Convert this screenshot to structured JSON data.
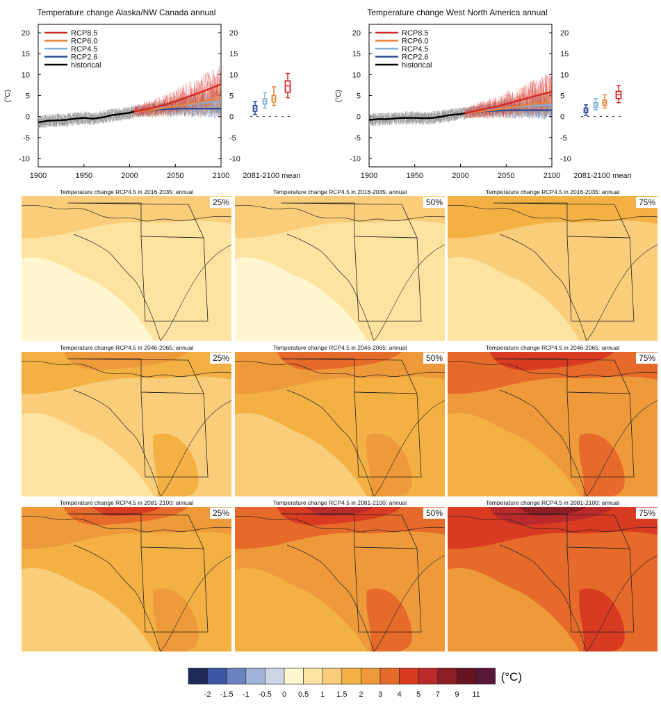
{
  "colors": {
    "rcp85": "#d62728",
    "rcp60": "#e8833a",
    "rcp45": "#7fb0dd",
    "rcp26": "#2c4a9a",
    "historical": "#000000",
    "hist_spread": "#8c8c8c",
    "map_levels": [
      "#1f2a5a",
      "#3b56a3",
      "#6b84bf",
      "#9fb2d8",
      "#cdd6e6",
      "#fff6cf",
      "#fde3a0",
      "#f9cd7a",
      "#f3b144",
      "#ef9a3a",
      "#e66a2a",
      "#d93a22",
      "#bb2a2b",
      "#8c1f24",
      "#661520",
      "#5a1738"
    ]
  },
  "chart_data": [
    {
      "type": "line",
      "title": "Temperature change Alaska/NW Canada annual",
      "ylabel": "(°C)",
      "xlim": [
        1900,
        2100
      ],
      "ylim": [
        -12,
        22
      ],
      "x_ticks": [
        "1900",
        "1950",
        "2000",
        "2050",
        "2100"
      ],
      "y_ticks": [
        "-10",
        "-5",
        "0",
        "5",
        "10",
        "15",
        "20"
      ],
      "legend": "top-left",
      "legend_entries": [
        "RCP8.5",
        "RCP6.0",
        "RCP4.5",
        "RCP2.6",
        "historical"
      ],
      "series": [
        {
          "name": "historical",
          "x": [
            1900,
            1910,
            1920,
            1930,
            1940,
            1950,
            1960,
            1970,
            1980,
            1990,
            2000,
            2005
          ],
          "y": [
            -1.4,
            -1.0,
            -0.9,
            -0.8,
            -0.5,
            -0.3,
            -0.5,
            -0.2,
            0.3,
            0.6,
            0.9,
            1.2
          ]
        },
        {
          "name": "RCP2.6",
          "x": [
            2005,
            2020,
            2040,
            2060,
            2080,
            2100
          ],
          "y": [
            1.2,
            1.5,
            1.8,
            1.9,
            1.9,
            1.9
          ]
        },
        {
          "name": "RCP4.5",
          "x": [
            2005,
            2020,
            2040,
            2060,
            2080,
            2100
          ],
          "y": [
            1.2,
            1.6,
            2.2,
            2.8,
            3.3,
            3.6
          ]
        },
        {
          "name": "RCP6.0",
          "x": [
            2005,
            2020,
            2040,
            2060,
            2080,
            2100
          ],
          "y": [
            1.2,
            1.5,
            2.1,
            2.9,
            3.6,
            4.3
          ]
        },
        {
          "name": "RCP8.5",
          "x": [
            2005,
            2020,
            2040,
            2060,
            2080,
            2100
          ],
          "y": [
            1.2,
            1.8,
            2.9,
            4.4,
            6.0,
            7.7
          ]
        }
      ],
      "box_label": "2081-2100 mean",
      "boxes": [
        {
          "scenario": "RCP2.6",
          "min": 0.5,
          "q1": 1.3,
          "median": 1.9,
          "q3": 2.6,
          "max": 3.6
        },
        {
          "scenario": "RCP4.5",
          "min": 2.0,
          "q1": 3.0,
          "median": 3.6,
          "q3": 4.2,
          "max": 5.7
        },
        {
          "scenario": "RCP6.0",
          "min": 2.6,
          "q1": 3.5,
          "median": 4.2,
          "q3": 5.0,
          "max": 7.1
        },
        {
          "scenario": "RCP8.5",
          "min": 4.5,
          "q1": 5.8,
          "median": 7.3,
          "q3": 8.5,
          "max": 10.3
        }
      ]
    },
    {
      "type": "line",
      "title": "Temperature change West North America annual",
      "ylabel": "(°C)",
      "xlim": [
        1900,
        2100
      ],
      "ylim": [
        -12,
        22
      ],
      "x_ticks": [
        "1900",
        "1950",
        "2000",
        "2050",
        "2100"
      ],
      "y_ticks": [
        "-10",
        "-5",
        "0",
        "5",
        "10",
        "15",
        "20"
      ],
      "legend": "top-left",
      "legend_entries": [
        "RCP8.5",
        "RCP6.0",
        "RCP4.5",
        "RCP2.6",
        "historical"
      ],
      "series": [
        {
          "name": "historical",
          "x": [
            1900,
            1910,
            1920,
            1930,
            1940,
            1950,
            1960,
            1970,
            1980,
            1990,
            2000,
            2005
          ],
          "y": [
            -0.8,
            -0.6,
            -0.6,
            -0.4,
            -0.3,
            -0.3,
            -0.4,
            -0.3,
            0.0,
            0.4,
            0.6,
            0.8
          ]
        },
        {
          "name": "RCP2.6",
          "x": [
            2005,
            2020,
            2040,
            2060,
            2080,
            2100
          ],
          "y": [
            0.8,
            1.2,
            1.4,
            1.5,
            1.5,
            1.5
          ]
        },
        {
          "name": "RCP4.5",
          "x": [
            2005,
            2020,
            2040,
            2060,
            2080,
            2100
          ],
          "y": [
            0.8,
            1.3,
            1.8,
            2.3,
            2.6,
            2.8
          ]
        },
        {
          "name": "RCP6.0",
          "x": [
            2005,
            2020,
            2040,
            2060,
            2080,
            2100
          ],
          "y": [
            0.8,
            1.2,
            1.7,
            2.4,
            3.0,
            3.5
          ]
        },
        {
          "name": "RCP8.5",
          "x": [
            2005,
            2020,
            2040,
            2060,
            2080,
            2100
          ],
          "y": [
            0.8,
            1.5,
            2.4,
            3.6,
            4.8,
            5.9
          ]
        }
      ],
      "box_label": "2081-2100 mean",
      "boxes": [
        {
          "scenario": "RCP2.6",
          "min": 0.3,
          "q1": 1.0,
          "median": 1.5,
          "q3": 2.0,
          "max": 2.8
        },
        {
          "scenario": "RCP4.5",
          "min": 1.6,
          "q1": 2.2,
          "median": 2.7,
          "q3": 3.3,
          "max": 4.3
        },
        {
          "scenario": "RCP6.0",
          "min": 2.0,
          "q1": 2.7,
          "median": 3.3,
          "q3": 3.9,
          "max": 5.2
        },
        {
          "scenario": "RCP8.5",
          "min": 3.3,
          "q1": 4.3,
          "median": 5.2,
          "q3": 6.0,
          "max": 7.4
        }
      ]
    },
    {
      "type": "heatmap",
      "titles": {
        "row1": "Temperature change RCP4.5 in 2016-2035: annual",
        "row2": "Temperature change RCP4.5 in 2046-2065: annual",
        "row3": "Temperature change RCP4.5 in 2081-2100: annual"
      },
      "percentiles": [
        "25%",
        "50%",
        "75%"
      ],
      "color_bounds": [
        "-2",
        "-1.5",
        "-1",
        "-0.5",
        "0",
        "0.5",
        "1",
        "1.5",
        "2",
        "3",
        "4",
        "5",
        "7",
        "9",
        "11"
      ],
      "units": "(°C)",
      "panels_base_level": [
        [
          6,
          6,
          7
        ],
        [
          7,
          8,
          9
        ],
        [
          8,
          9,
          10
        ]
      ]
    }
  ]
}
